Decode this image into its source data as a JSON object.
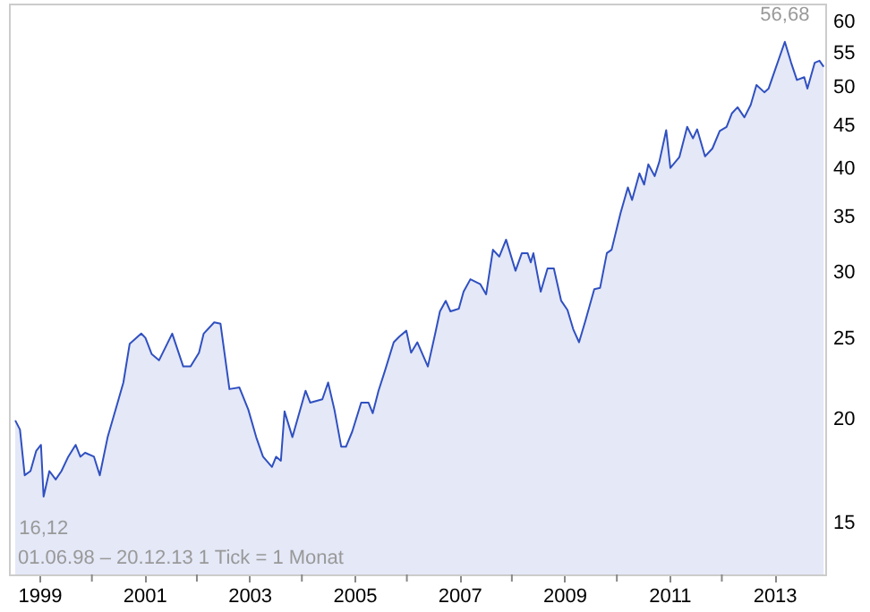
{
  "chart_data": {
    "type": "area",
    "log": "y",
    "grid": false,
    "x": [
      1998.54,
      1998.63,
      1998.72,
      1998.83,
      1998.94,
      1999.03,
      1999.08,
      1999.19,
      1999.31,
      1999.42,
      1999.55,
      1999.69,
      1999.78,
      1999.87,
      2000.04,
      2000.15,
      2000.3,
      2000.49,
      2000.6,
      2000.72,
      2000.94,
      2001.02,
      2001.14,
      2001.28,
      2001.53,
      2001.74,
      2001.88,
      2002.04,
      2002.13,
      2002.33,
      2002.45,
      2002.62,
      2002.81,
      2002.98,
      2003.13,
      2003.26,
      2003.43,
      2003.51,
      2003.6,
      2003.67,
      2003.82,
      2004.07,
      2004.16,
      2004.39,
      2004.5,
      2004.62,
      2004.75,
      2004.84,
      2004.96,
      2005.13,
      2005.27,
      2005.35,
      2005.46,
      2005.58,
      2005.75,
      2005.86,
      2005.99,
      2006.08,
      2006.2,
      2006.4,
      2006.54,
      2006.63,
      2006.74,
      2006.83,
      2006.99,
      2007.08,
      2007.21,
      2007.4,
      2007.51,
      2007.64,
      2007.76,
      2007.89,
      2008.07,
      2008.19,
      2008.3,
      2008.36,
      2008.41,
      2008.55,
      2008.68,
      2008.8,
      2008.94,
      2009.06,
      2009.17,
      2009.28,
      2009.4,
      2009.57,
      2009.68,
      2009.81,
      2009.9,
      2010.07,
      2010.21,
      2010.29,
      2010.43,
      2010.52,
      2010.6,
      2010.72,
      2010.81,
      2010.94,
      2011.02,
      2011.19,
      2011.34,
      2011.45,
      2011.53,
      2011.68,
      2011.82,
      2011.96,
      2012.09,
      2012.19,
      2012.3,
      2012.43,
      2012.55,
      2012.66,
      2012.81,
      2012.89,
      2012.98,
      2013.2,
      2013.32,
      2013.43,
      2013.57,
      2013.63,
      2013.77,
      2013.86,
      2013.94
    ],
    "series": [
      {
        "color": "#3050c0",
        "values": [
          19.9,
          19.4,
          17.1,
          17.3,
          18.3,
          18.6,
          16.12,
          17.3,
          16.9,
          17.3,
          18.0,
          18.6,
          18.0,
          18.2,
          18.0,
          17.1,
          19.0,
          20.9,
          22.1,
          24.6,
          25.3,
          25.0,
          23.9,
          23.5,
          25.3,
          23.1,
          23.1,
          24.0,
          25.3,
          26.1,
          26.0,
          21.7,
          21.8,
          20.5,
          19.0,
          18.0,
          17.5,
          18.0,
          17.8,
          20.4,
          19.0,
          21.6,
          20.9,
          21.1,
          22.1,
          20.5,
          18.5,
          18.5,
          19.3,
          20.9,
          20.9,
          20.3,
          21.6,
          22.8,
          24.7,
          25.1,
          25.5,
          24.0,
          24.7,
          23.1,
          25.3,
          26.9,
          27.7,
          26.9,
          27.1,
          28.4,
          29.4,
          29.0,
          28.2,
          31.9,
          31.3,
          32.8,
          30.1,
          31.6,
          31.6,
          30.8,
          31.6,
          28.4,
          30.3,
          30.3,
          27.7,
          27.0,
          25.6,
          24.7,
          26.2,
          28.6,
          28.7,
          31.6,
          31.9,
          35.3,
          37.9,
          36.6,
          39.4,
          38.2,
          40.4,
          39.1,
          40.7,
          44.4,
          40.0,
          41.2,
          44.8,
          43.4,
          44.5,
          41.3,
          42.2,
          44.3,
          44.8,
          46.5,
          47.3,
          46.0,
          47.6,
          50.3,
          49.3,
          49.8,
          51.7,
          56.68,
          53.5,
          51.0,
          51.4,
          49.8,
          53.5,
          53.8,
          52.9
        ]
      }
    ],
    "xlim": [
      1998.42,
      2013.97
    ],
    "xticks": [
      1999,
      {
        "value": 2000,
        "label": null
      },
      2001,
      {
        "value": 2002,
        "label": null
      },
      2003,
      {
        "value": 2004,
        "label": null
      },
      2005,
      {
        "value": 2006,
        "label": null
      },
      2007,
      {
        "value": 2008,
        "label": null
      },
      2009,
      {
        "value": 2010,
        "label": null
      },
      2011,
      {
        "value": 2012,
        "label": null
      },
      2013
    ],
    "ylim": [
      13,
      63
    ],
    "yticks": [
      15,
      20,
      25,
      30,
      35,
      40,
      45,
      50,
      55,
      60
    ],
    "annotations": [
      {
        "text": "16,12",
        "x": 1999.08,
        "y": 16.12
      },
      {
        "text": "56,68",
        "x": 2013.2,
        "y": 56.68
      },
      "01.06.98 – 20.12.13   1 Tick = 1 Monat"
    ]
  }
}
